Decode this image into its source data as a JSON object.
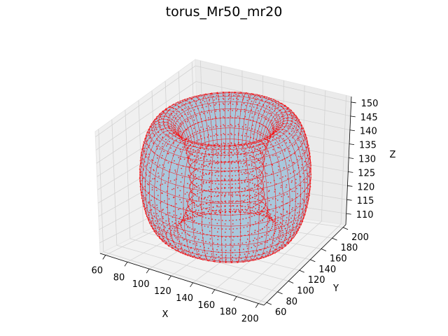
{
  "chart_data": {
    "type": "scatter",
    "projection": "3d",
    "title": "torus_Mr50_mr20",
    "xlabel": "X",
    "ylabel": "Y",
    "zlabel": "Z",
    "xlim": [
      55,
      205
    ],
    "ylim": [
      55,
      205
    ],
    "zlim": [
      106,
      152
    ],
    "xticks": [
      60,
      80,
      100,
      120,
      140,
      160,
      180,
      200
    ],
    "yticks": [
      60,
      80,
      100,
      120,
      140,
      160,
      180,
      200
    ],
    "zticks": [
      110,
      115,
      120,
      125,
      130,
      135,
      140,
      145,
      150
    ],
    "grid": true,
    "surface": {
      "shape": "torus",
      "center": [
        130,
        130,
        130
      ],
      "major_radius": 50,
      "minor_radius": 20,
      "face_color": "#a9c8dc",
      "point_color": "#ff0000"
    }
  }
}
